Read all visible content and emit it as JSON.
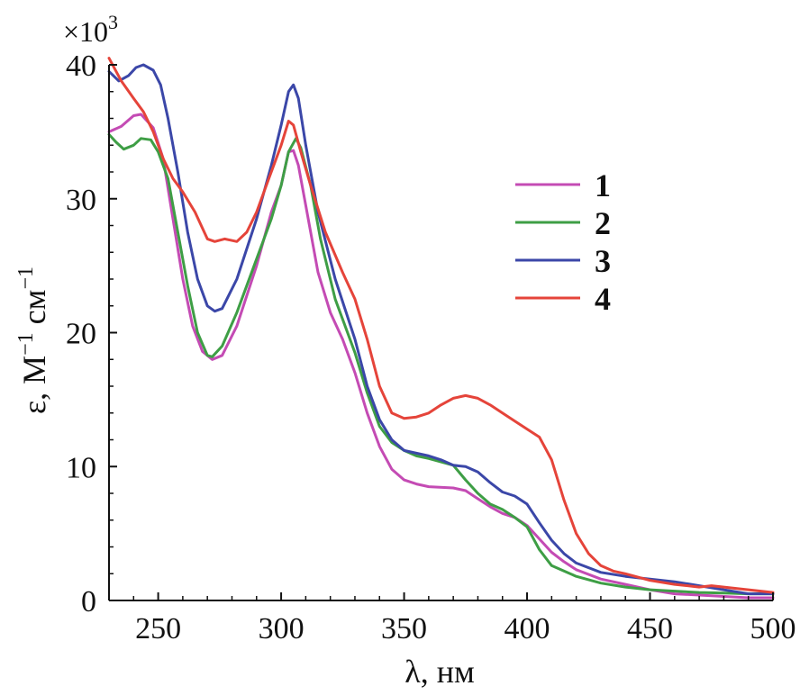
{
  "chart_data": {
    "type": "line",
    "multiplier_label": "×10",
    "multiplier_exp": "3",
    "xlabel": "λ, нм",
    "ylabel_main": "ε, M",
    "ylabel_exp1": "−1",
    "ylabel_unit": " см",
    "ylabel_exp2": "−1",
    "xlim": [
      230,
      500
    ],
    "ylim": [
      0,
      40
    ],
    "x_ticks": [
      250,
      300,
      350,
      400,
      450,
      500
    ],
    "y_ticks": [
      0,
      10,
      20,
      30,
      40
    ],
    "legend_position": "right",
    "series": [
      {
        "name": "1",
        "color": "#c44bb4",
        "points": [
          [
            230,
            35
          ],
          [
            235,
            35.4
          ],
          [
            240,
            36.2
          ],
          [
            243,
            36.3
          ],
          [
            248,
            35.3
          ],
          [
            252,
            33
          ],
          [
            256,
            28.5
          ],
          [
            260,
            24
          ],
          [
            264,
            20.5
          ],
          [
            268,
            18.6
          ],
          [
            272,
            18
          ],
          [
            276,
            18.3
          ],
          [
            282,
            20.5
          ],
          [
            290,
            25
          ],
          [
            296,
            29
          ],
          [
            300,
            31
          ],
          [
            303,
            33.5
          ],
          [
            305,
            33.6
          ],
          [
            307,
            32.5
          ],
          [
            310,
            29.5
          ],
          [
            315,
            24.5
          ],
          [
            320,
            21.5
          ],
          [
            325,
            19.5
          ],
          [
            330,
            17
          ],
          [
            335,
            14
          ],
          [
            340,
            11.5
          ],
          [
            345,
            9.8
          ],
          [
            350,
            9.0
          ],
          [
            355,
            8.7
          ],
          [
            360,
            8.5
          ],
          [
            370,
            8.4
          ],
          [
            375,
            8.2
          ],
          [
            380,
            7.6
          ],
          [
            385,
            7.0
          ],
          [
            390,
            6.5
          ],
          [
            395,
            6.2
          ],
          [
            400,
            5.6
          ],
          [
            405,
            4.6
          ],
          [
            410,
            3.6
          ],
          [
            415,
            2.9
          ],
          [
            420,
            2.3
          ],
          [
            430,
            1.6
          ],
          [
            440,
            1.2
          ],
          [
            450,
            0.8
          ],
          [
            460,
            0.5
          ],
          [
            470,
            0.4
          ],
          [
            480,
            0.3
          ],
          [
            490,
            0.2
          ],
          [
            500,
            0.2
          ]
        ]
      },
      {
        "name": "2",
        "color": "#3e9e45",
        "points": [
          [
            230,
            34.8
          ],
          [
            233,
            34.2
          ],
          [
            236,
            33.7
          ],
          [
            240,
            34
          ],
          [
            243,
            34.5
          ],
          [
            247,
            34.4
          ],
          [
            250,
            33.5
          ],
          [
            254,
            31.5
          ],
          [
            258,
            27.5
          ],
          [
            262,
            23.5
          ],
          [
            266,
            20
          ],
          [
            270,
            18.3
          ],
          [
            272,
            18.2
          ],
          [
            276,
            19
          ],
          [
            282,
            21.5
          ],
          [
            290,
            25.5
          ],
          [
            296,
            28.5
          ],
          [
            300,
            31
          ],
          [
            303,
            33.5
          ],
          [
            306,
            34.5
          ],
          [
            308,
            33.8
          ],
          [
            312,
            31
          ],
          [
            316,
            27
          ],
          [
            322,
            22.5
          ],
          [
            330,
            18.5
          ],
          [
            335,
            15.5
          ],
          [
            340,
            13
          ],
          [
            345,
            11.8
          ],
          [
            350,
            11.2
          ],
          [
            355,
            10.8
          ],
          [
            360,
            10.6
          ],
          [
            370,
            10.1
          ],
          [
            375,
            9.0
          ],
          [
            380,
            8.0
          ],
          [
            385,
            7.2
          ],
          [
            390,
            6.8
          ],
          [
            395,
            6.2
          ],
          [
            400,
            5.5
          ],
          [
            405,
            3.8
          ],
          [
            410,
            2.6
          ],
          [
            420,
            1.8
          ],
          [
            430,
            1.3
          ],
          [
            440,
            1.0
          ],
          [
            450,
            0.8
          ],
          [
            460,
            0.7
          ],
          [
            470,
            0.6
          ],
          [
            480,
            0.55
          ],
          [
            490,
            0.5
          ],
          [
            500,
            0.5
          ]
        ]
      },
      {
        "name": "3",
        "color": "#3b47a8",
        "points": [
          [
            230,
            39.5
          ],
          [
            234,
            38.8
          ],
          [
            238,
            39.2
          ],
          [
            241,
            39.8
          ],
          [
            244,
            40
          ],
          [
            248,
            39.6
          ],
          [
            251,
            38.5
          ],
          [
            254,
            36
          ],
          [
            258,
            32
          ],
          [
            262,
            27.5
          ],
          [
            266,
            24
          ],
          [
            270,
            22
          ],
          [
            273,
            21.6
          ],
          [
            276,
            21.8
          ],
          [
            282,
            24
          ],
          [
            290,
            28.5
          ],
          [
            296,
            32.5
          ],
          [
            300,
            35.5
          ],
          [
            303,
            38
          ],
          [
            305,
            38.5
          ],
          [
            307,
            37.5
          ],
          [
            310,
            34
          ],
          [
            315,
            29
          ],
          [
            322,
            24
          ],
          [
            330,
            19.5
          ],
          [
            335,
            16
          ],
          [
            340,
            13.5
          ],
          [
            345,
            12
          ],
          [
            350,
            11.2
          ],
          [
            355,
            11.0
          ],
          [
            360,
            10.8
          ],
          [
            365,
            10.5
          ],
          [
            370,
            10.1
          ],
          [
            375,
            10.0
          ],
          [
            380,
            9.6
          ],
          [
            385,
            8.8
          ],
          [
            390,
            8.1
          ],
          [
            395,
            7.8
          ],
          [
            400,
            7.2
          ],
          [
            405,
            5.8
          ],
          [
            410,
            4.5
          ],
          [
            415,
            3.5
          ],
          [
            420,
            2.8
          ],
          [
            430,
            2.1
          ],
          [
            440,
            1.8
          ],
          [
            450,
            1.6
          ],
          [
            460,
            1.4
          ],
          [
            470,
            1.1
          ],
          [
            480,
            0.8
          ],
          [
            490,
            0.5
          ],
          [
            500,
            0.5
          ]
        ]
      },
      {
        "name": "4",
        "color": "#e5443a",
        "points": [
          [
            230,
            40.5
          ],
          [
            235,
            38.8
          ],
          [
            240,
            37.5
          ],
          [
            244,
            36.5
          ],
          [
            248,
            35
          ],
          [
            252,
            33
          ],
          [
            256,
            31.5
          ],
          [
            260,
            30.5
          ],
          [
            265,
            29
          ],
          [
            270,
            27
          ],
          [
            273,
            26.8
          ],
          [
            277,
            27
          ],
          [
            282,
            26.8
          ],
          [
            286,
            27.5
          ],
          [
            290,
            29
          ],
          [
            295,
            31.5
          ],
          [
            300,
            34
          ],
          [
            303,
            35.8
          ],
          [
            305,
            35.5
          ],
          [
            308,
            33.5
          ],
          [
            312,
            31
          ],
          [
            318,
            27.5
          ],
          [
            325,
            24.5
          ],
          [
            330,
            22.5
          ],
          [
            335,
            19.5
          ],
          [
            340,
            16
          ],
          [
            345,
            14
          ],
          [
            350,
            13.6
          ],
          [
            355,
            13.7
          ],
          [
            360,
            14
          ],
          [
            365,
            14.6
          ],
          [
            370,
            15.1
          ],
          [
            375,
            15.3
          ],
          [
            380,
            15.1
          ],
          [
            385,
            14.6
          ],
          [
            390,
            14.0
          ],
          [
            395,
            13.4
          ],
          [
            400,
            12.8
          ],
          [
            405,
            12.2
          ],
          [
            410,
            10.5
          ],
          [
            415,
            7.5
          ],
          [
            420,
            5
          ],
          [
            425,
            3.5
          ],
          [
            430,
            2.6
          ],
          [
            435,
            2.2
          ],
          [
            440,
            2.0
          ],
          [
            450,
            1.5
          ],
          [
            460,
            1.2
          ],
          [
            470,
            1.0
          ],
          [
            475,
            1.1
          ],
          [
            480,
            1.0
          ],
          [
            485,
            0.9
          ],
          [
            490,
            0.8
          ],
          [
            495,
            0.7
          ],
          [
            500,
            0.6
          ]
        ]
      }
    ]
  }
}
